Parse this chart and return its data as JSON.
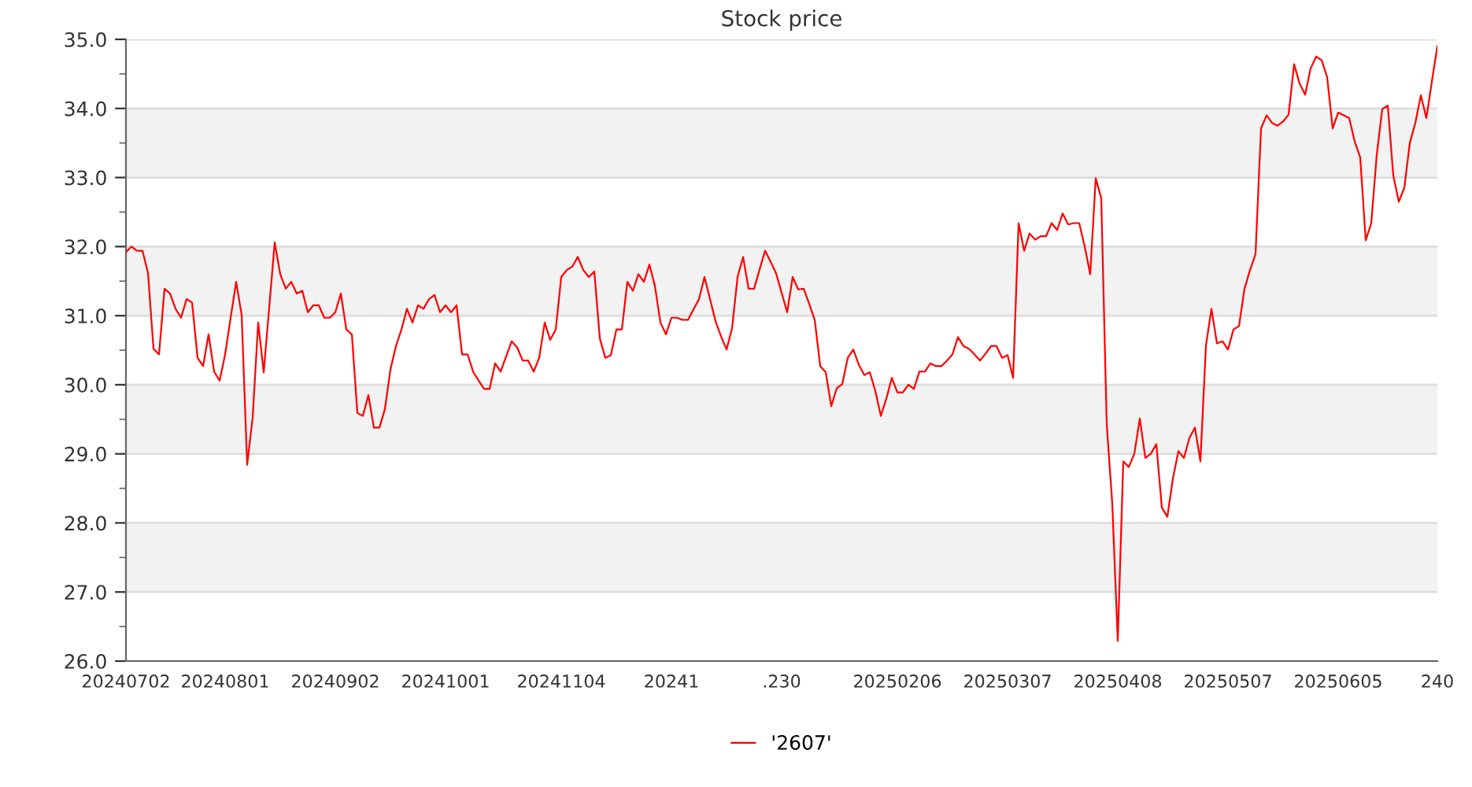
{
  "chart_data": {
    "type": "line",
    "title": "Stock price",
    "categories": [
      "20240702",
      null,
      null,
      null,
      null,
      null,
      null,
      null,
      null,
      null,
      null,
      null,
      null,
      null,
      null,
      null,
      null,
      null,
      "20240801",
      null,
      null,
      null,
      null,
      null,
      null,
      null,
      null,
      null,
      null,
      null,
      null,
      null,
      null,
      null,
      null,
      null,
      null,
      null,
      "20240902",
      null,
      null,
      null,
      null,
      null,
      null,
      null,
      null,
      null,
      null,
      null,
      null,
      null,
      null,
      null,
      null,
      null,
      null,
      null,
      "20241001",
      null,
      null,
      null,
      null,
      null,
      null,
      null,
      null,
      null,
      null,
      null,
      null,
      null,
      null,
      null,
      null,
      null,
      null,
      null,
      null,
      "20241104",
      null,
      null,
      null,
      null,
      null,
      null,
      null,
      null,
      null,
      null,
      null,
      null,
      null,
      null,
      null,
      null,
      null,
      null,
      null,
      "20241",
      null,
      null,
      null,
      null,
      null,
      null,
      null,
      null,
      null,
      null,
      null,
      null,
      null,
      null,
      null,
      null,
      null,
      null,
      null,
      ".230",
      null,
      null,
      null,
      null,
      null,
      null,
      null,
      null,
      null,
      null,
      null,
      null,
      null,
      null,
      null,
      null,
      null,
      null,
      null,
      null,
      "20250206",
      null,
      null,
      null,
      null,
      null,
      null,
      null,
      null,
      null,
      null,
      null,
      null,
      null,
      null,
      null,
      null,
      null,
      null,
      null,
      "20250307",
      null,
      null,
      null,
      null,
      null,
      null,
      null,
      null,
      null,
      null,
      null,
      null,
      null,
      null,
      null,
      null,
      null,
      null,
      null,
      "20250408",
      null,
      null,
      null,
      null,
      null,
      null,
      null,
      null,
      null,
      null,
      null,
      null,
      null,
      null,
      null,
      null,
      null,
      null,
      null,
      "20250507",
      null,
      null,
      null,
      null,
      null,
      null,
      null,
      null,
      null,
      null,
      null,
      null,
      null,
      null,
      null,
      null,
      null,
      null,
      null,
      "20250605",
      null,
      null,
      null,
      null,
      null,
      null,
      null,
      null,
      null,
      null,
      null,
      null,
      null,
      null,
      null,
      null,
      null,
      "240"
    ],
    "series": [
      {
        "name": "'2607'",
        "color": "#ff0000",
        "values": [
          31.92,
          32.0,
          31.94,
          31.94,
          31.62,
          30.52,
          30.44,
          31.39,
          31.32,
          31.1,
          30.97,
          31.24,
          31.19,
          30.39,
          30.27,
          30.73,
          30.19,
          30.06,
          30.44,
          30.97,
          31.49,
          31.01,
          28.84,
          29.53,
          30.9,
          30.18,
          31.12,
          32.06,
          31.6,
          31.39,
          31.49,
          31.32,
          31.36,
          31.05,
          31.15,
          31.15,
          30.97,
          30.97,
          31.05,
          31.32,
          30.8,
          30.73,
          29.59,
          29.55,
          29.85,
          29.38,
          29.38,
          29.65,
          30.22,
          30.56,
          30.8,
          31.1,
          30.9,
          31.15,
          31.1,
          31.24,
          31.3,
          31.05,
          31.15,
          31.05,
          31.15,
          30.44,
          30.44,
          30.19,
          30.06,
          29.94,
          29.94,
          30.31,
          30.19,
          30.41,
          30.63,
          30.54,
          30.35,
          30.35,
          30.19,
          30.39,
          30.9,
          30.65,
          30.8,
          31.56,
          31.66,
          31.71,
          31.85,
          31.66,
          31.56,
          31.64,
          30.67,
          30.39,
          30.43,
          30.8,
          30.8,
          31.49,
          31.36,
          31.6,
          31.49,
          31.74,
          31.43,
          30.9,
          30.73,
          30.97,
          30.97,
          30.94,
          30.94,
          31.09,
          31.24,
          31.56,
          31.24,
          30.92,
          30.7,
          30.51,
          30.82,
          31.56,
          31.85,
          31.39,
          31.39,
          31.67,
          31.94,
          31.78,
          31.61,
          31.33,
          31.05,
          31.56,
          31.38,
          31.39,
          31.17,
          30.94,
          30.27,
          30.18,
          29.69,
          29.95,
          30.01,
          30.39,
          30.51,
          30.29,
          30.14,
          30.18,
          29.91,
          29.55,
          29.8,
          30.1,
          29.89,
          29.89,
          30.0,
          29.94,
          30.19,
          30.19,
          30.31,
          30.27,
          30.27,
          30.35,
          30.44,
          30.69,
          30.56,
          30.52,
          30.44,
          30.35,
          30.45,
          30.56,
          30.56,
          30.39,
          30.43,
          30.1,
          32.34,
          31.94,
          32.19,
          32.1,
          32.15,
          32.15,
          32.34,
          32.24,
          32.48,
          32.32,
          32.34,
          32.34,
          32.0,
          31.6,
          32.99,
          32.7,
          29.42,
          28.28,
          26.29,
          28.89,
          28.81,
          29.0,
          29.51,
          28.94,
          29.0,
          29.14,
          28.22,
          28.09,
          28.64,
          29.04,
          28.94,
          29.23,
          29.38,
          28.89,
          30.57,
          31.1,
          30.6,
          30.63,
          30.51,
          30.8,
          30.85,
          31.39,
          31.66,
          31.89,
          33.71,
          33.9,
          33.79,
          33.75,
          33.81,
          33.91,
          34.64,
          34.36,
          34.2,
          34.58,
          34.75,
          34.7,
          34.45,
          33.71,
          33.94,
          33.9,
          33.86,
          33.52,
          33.29,
          32.09,
          32.34,
          33.33,
          33.99,
          34.04,
          33.03,
          32.65,
          32.85,
          33.5,
          33.79,
          34.19,
          33.86,
          34.39,
          34.9
        ]
      }
    ],
    "ylim": [
      26.0,
      35.0
    ],
    "yticks": [
      {
        "value": 26.0,
        "label": "26.0"
      },
      {
        "value": 26.5,
        "label": null
      },
      {
        "value": 27.0,
        "label": "27.0"
      },
      {
        "value": 27.5,
        "label": null
      },
      {
        "value": 28.0,
        "label": "28.0"
      },
      {
        "value": 28.5,
        "label": null
      },
      {
        "value": 29.0,
        "label": "29.0"
      },
      {
        "value": 29.5,
        "label": null
      },
      {
        "value": 30.0,
        "label": "30.0"
      },
      {
        "value": 30.5,
        "label": null
      },
      {
        "value": 31.0,
        "label": "31.0"
      },
      {
        "value": 31.5,
        "label": null
      },
      {
        "value": 32.0,
        "label": "32.0"
      },
      {
        "value": 32.5,
        "label": null
      },
      {
        "value": 33.0,
        "label": "33.0"
      },
      {
        "value": 33.5,
        "label": null
      },
      {
        "value": 34.0,
        "label": "34.0"
      },
      {
        "value": 34.5,
        "label": null
      },
      {
        "value": 35.0,
        "label": "35.0"
      }
    ],
    "bands": [
      {
        "axis": "y",
        "from": 27.0,
        "to": 28.0,
        "color": "#f2f2f2"
      },
      {
        "axis": "y",
        "from": 29.0,
        "to": 30.0,
        "color": "#f2f2f2"
      },
      {
        "axis": "y",
        "from": 31.0,
        "to": 32.0,
        "color": "#f2f2f2"
      },
      {
        "axis": "y",
        "from": 33.0,
        "to": 34.0,
        "color": "#f2f2f2"
      }
    ],
    "grid": "y",
    "legend": "bottom",
    "marker": "none",
    "line_style": "solid"
  }
}
